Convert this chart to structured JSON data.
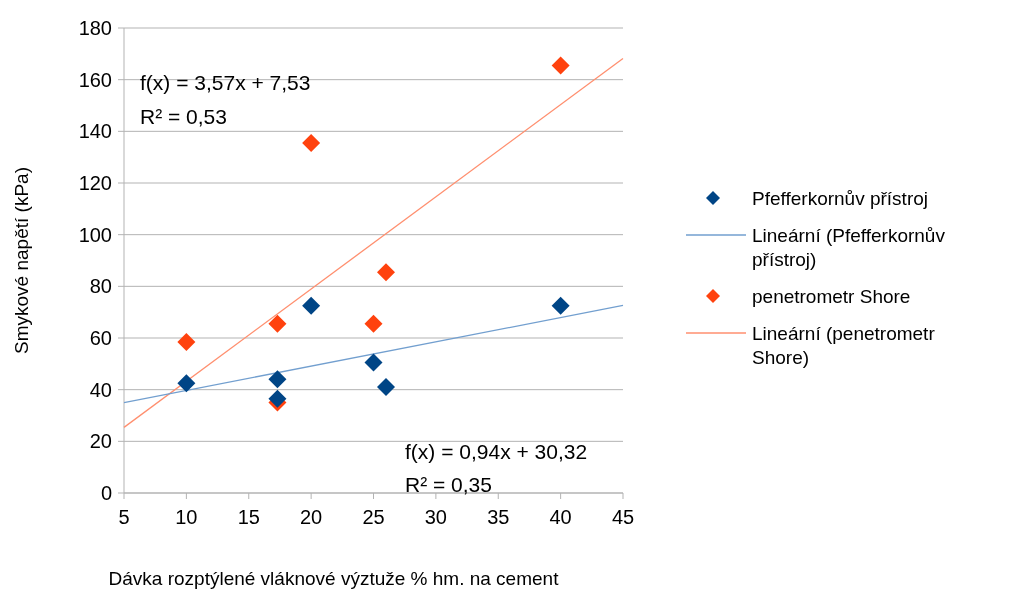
{
  "chart_data": {
    "type": "scatter",
    "xlabel": "Dávka rozptýlené vláknové výztuže % hm. na cement",
    "ylabel": "Smykové napětí (kPa)",
    "xlim": [
      5,
      45
    ],
    "xticks": [
      5,
      10,
      15,
      20,
      25,
      30,
      35,
      40,
      45
    ],
    "ylim": [
      0,
      180
    ],
    "yticks": [
      0,
      20,
      40,
      60,
      80,
      100,
      120,
      140,
      160,
      180
    ],
    "grid": "y",
    "legend": "right",
    "marker": "diamond",
    "series": [
      {
        "name": "Pfefferkornův přístroj",
        "color": "#004586",
        "x": [
          10,
          17.3,
          17.3,
          20,
          25,
          26,
          40
        ],
        "values": [
          42.5,
          44,
          36.5,
          72.5,
          50.5,
          41,
          72.5
        ]
      },
      {
        "name": "Lineární (Pfefferkornův přístroj)",
        "type": "line",
        "marker": "none",
        "color": "#729fcf",
        "x": [
          5,
          45
        ],
        "values": [
          35,
          72.6
        ]
      },
      {
        "name": "penetrometr Shore",
        "color": "#ff420e",
        "x": [
          10,
          17.3,
          17.3,
          20,
          25,
          26,
          40
        ],
        "values": [
          58.5,
          65.5,
          35,
          135.5,
          65.5,
          85.5,
          165.5
        ]
      },
      {
        "name": "Lineární (penetrometr Shore)",
        "type": "line",
        "marker": "none",
        "color": "#ff8f6f",
        "x": [
          5,
          45
        ],
        "values": [
          25.4,
          168.2
        ]
      }
    ],
    "annotations": [
      "f(x) = 3,57x + 7,53",
      "R² = 0,53",
      "f(x) = 0,94x + 30,32",
      "R² = 0,35"
    ]
  }
}
